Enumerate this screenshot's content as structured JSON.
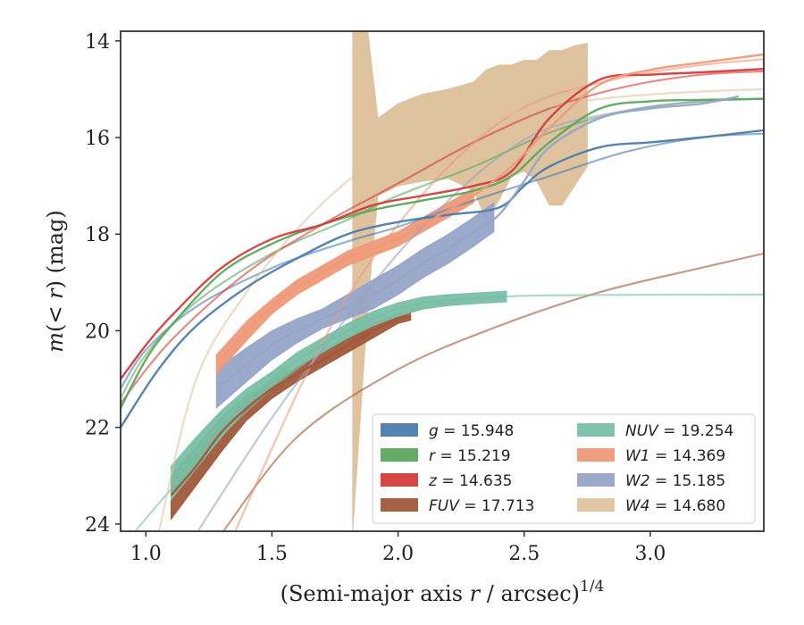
{
  "chart_data": {
    "type": "line",
    "xlabel": "(Semi-major axis r / arcsec)1/4",
    "ylabel": "m(< r) (mag)",
    "xlim": [
      0.9,
      3.45
    ],
    "ylim": [
      24.15,
      13.8
    ],
    "y_inverted": true,
    "grid": false,
    "legend_position": "lower-right",
    "xticks": [
      "1.0",
      "1.5",
      "2.0",
      "2.5",
      "3.0"
    ],
    "yticks": [
      "14",
      "16",
      "18",
      "20",
      "22",
      "24"
    ],
    "series": [
      {
        "key": "g",
        "name": "g",
        "value": "15.948",
        "color": "#4c7dad",
        "model": [
          [
            0.9,
            21.2
          ],
          [
            1.0,
            20.4
          ],
          [
            1.2,
            19.5
          ],
          [
            1.5,
            18.7
          ],
          [
            1.8,
            18.15
          ],
          [
            2.0,
            17.85
          ],
          [
            2.3,
            17.3
          ],
          [
            2.6,
            16.8
          ],
          [
            2.9,
            16.3
          ],
          [
            3.2,
            16.0
          ],
          [
            3.45,
            15.92
          ]
        ],
        "observed": [
          [
            0.9,
            22.0
          ],
          [
            1.05,
            20.8
          ],
          [
            1.2,
            19.9
          ],
          [
            1.4,
            19.1
          ],
          [
            1.6,
            18.5
          ],
          [
            1.8,
            18.0
          ],
          [
            2.0,
            17.75
          ],
          [
            2.2,
            17.6
          ],
          [
            2.4,
            17.45
          ],
          [
            2.5,
            17.0
          ],
          [
            2.6,
            16.6
          ],
          [
            2.8,
            16.2
          ],
          [
            3.0,
            16.1
          ],
          [
            3.2,
            16.0
          ],
          [
            3.45,
            15.85
          ]
        ],
        "band": []
      },
      {
        "key": "r",
        "name": "r",
        "value": "15.219",
        "color": "#5ea85e",
        "model": [
          [
            0.9,
            21.4
          ],
          [
            1.0,
            20.5
          ],
          [
            1.2,
            19.4
          ],
          [
            1.5,
            18.4
          ],
          [
            1.8,
            17.7
          ],
          [
            2.0,
            17.2
          ],
          [
            2.3,
            16.6
          ],
          [
            2.6,
            15.9
          ],
          [
            2.9,
            15.45
          ],
          [
            3.2,
            15.25
          ],
          [
            3.45,
            15.2
          ]
        ],
        "observed": [
          [
            0.9,
            21.6
          ],
          [
            1.0,
            20.6
          ],
          [
            1.1,
            19.9
          ],
          [
            1.3,
            18.8
          ],
          [
            1.5,
            18.2
          ],
          [
            1.7,
            17.8
          ],
          [
            1.9,
            17.5
          ],
          [
            2.1,
            17.3
          ],
          [
            2.3,
            17.1
          ],
          [
            2.45,
            16.8
          ],
          [
            2.6,
            16.1
          ],
          [
            2.8,
            15.4
          ],
          [
            3.0,
            15.25
          ],
          [
            3.2,
            15.22
          ],
          [
            3.45,
            15.2
          ]
        ],
        "band": []
      },
      {
        "key": "z",
        "name": "z",
        "value": "14.635",
        "color": "#d43c3c",
        "model": [
          [
            0.9,
            21.5
          ],
          [
            1.1,
            20.2
          ],
          [
            1.4,
            18.8
          ],
          [
            1.7,
            17.8
          ],
          [
            2.0,
            16.95
          ],
          [
            2.3,
            16.1
          ],
          [
            2.6,
            15.4
          ],
          [
            2.9,
            14.95
          ],
          [
            3.2,
            14.7
          ],
          [
            3.45,
            14.63
          ]
        ],
        "observed": [
          [
            0.9,
            21.0
          ],
          [
            1.0,
            20.3
          ],
          [
            1.1,
            19.7
          ],
          [
            1.3,
            18.7
          ],
          [
            1.5,
            18.1
          ],
          [
            1.7,
            17.8
          ],
          [
            1.9,
            17.4
          ],
          [
            2.1,
            17.2
          ],
          [
            2.3,
            17.0
          ],
          [
            2.45,
            16.7
          ],
          [
            2.6,
            15.6
          ],
          [
            2.8,
            14.8
          ],
          [
            3.0,
            14.7
          ],
          [
            3.2,
            14.65
          ],
          [
            3.45,
            14.58
          ]
        ],
        "band": []
      },
      {
        "key": "FUV",
        "name": "FUV",
        "value": "17.713",
        "color": "#a0583a",
        "model": [
          [
            1.3,
            24.2
          ],
          [
            1.6,
            22.2
          ],
          [
            2.0,
            20.8
          ],
          [
            2.4,
            19.9
          ],
          [
            2.8,
            19.2
          ],
          [
            3.2,
            18.7
          ],
          [
            3.45,
            18.4
          ]
        ],
        "observed": [
          [
            1.1,
            23.4
          ],
          [
            1.2,
            22.8
          ],
          [
            1.3,
            22.1
          ],
          [
            1.4,
            21.6
          ],
          [
            1.5,
            21.2
          ],
          [
            1.6,
            20.9
          ],
          [
            1.7,
            20.6
          ],
          [
            1.8,
            20.3
          ],
          [
            1.9,
            20.0
          ],
          [
            2.0,
            19.75
          ],
          [
            2.05,
            19.7
          ]
        ],
        "band": [
          [
            1.1,
            23.9,
            23.0
          ],
          [
            1.2,
            23.2,
            22.4
          ],
          [
            1.3,
            22.5,
            21.8
          ],
          [
            1.4,
            21.85,
            21.35
          ],
          [
            1.5,
            21.4,
            21.0
          ],
          [
            1.6,
            21.05,
            20.75
          ],
          [
            1.7,
            20.75,
            20.45
          ],
          [
            1.8,
            20.45,
            20.15
          ],
          [
            1.9,
            20.15,
            19.85
          ],
          [
            2.0,
            19.85,
            19.65
          ],
          [
            2.05,
            19.78,
            19.62
          ]
        ]
      },
      {
        "key": "NUV",
        "name": "NUV",
        "value": "19.254",
        "color": "#79bfa5",
        "model": [
          [
            0.95,
            24.2
          ],
          [
            1.2,
            22.7
          ],
          [
            1.5,
            21.2
          ],
          [
            1.8,
            20.1
          ],
          [
            2.1,
            19.5
          ],
          [
            2.4,
            19.3
          ],
          [
            2.8,
            19.26
          ],
          [
            3.45,
            19.25
          ]
        ],
        "observed": [
          [
            1.1,
            23.1
          ],
          [
            1.2,
            22.5
          ],
          [
            1.3,
            21.9
          ],
          [
            1.4,
            21.4
          ],
          [
            1.5,
            21.0
          ],
          [
            1.6,
            20.6
          ],
          [
            1.7,
            20.3
          ],
          [
            1.8,
            20.0
          ],
          [
            1.9,
            19.75
          ],
          [
            2.0,
            19.55
          ],
          [
            2.1,
            19.42
          ],
          [
            2.2,
            19.36
          ],
          [
            2.3,
            19.33
          ],
          [
            2.43,
            19.28
          ]
        ],
        "band": [
          [
            1.1,
            23.5,
            22.8
          ],
          [
            1.2,
            22.85,
            22.2
          ],
          [
            1.3,
            22.2,
            21.65
          ],
          [
            1.4,
            21.6,
            21.2
          ],
          [
            1.5,
            21.15,
            20.85
          ],
          [
            1.6,
            20.75,
            20.45
          ],
          [
            1.7,
            20.45,
            20.15
          ],
          [
            1.8,
            20.15,
            19.85
          ],
          [
            1.9,
            19.9,
            19.6
          ],
          [
            2.0,
            19.7,
            19.42
          ],
          [
            2.1,
            19.55,
            19.3
          ],
          [
            2.2,
            19.48,
            19.25
          ],
          [
            2.3,
            19.44,
            19.22
          ],
          [
            2.43,
            19.4,
            19.18
          ]
        ]
      },
      {
        "key": "W1",
        "name": "W1",
        "value": "14.369",
        "color": "#ee9a78",
        "model": [
          [
            1.35,
            24.2
          ],
          [
            1.6,
            21.3
          ],
          [
            1.8,
            19.3
          ],
          [
            2.0,
            17.8
          ],
          [
            2.2,
            16.6
          ],
          [
            2.4,
            15.7
          ],
          [
            2.6,
            15.15
          ],
          [
            2.9,
            14.75
          ],
          [
            3.2,
            14.5
          ],
          [
            3.45,
            14.38
          ]
        ],
        "observed": [
          [
            1.28,
            20.7
          ],
          [
            1.4,
            20.0
          ],
          [
            1.5,
            19.5
          ],
          [
            1.6,
            19.1
          ],
          [
            1.7,
            18.8
          ],
          [
            1.8,
            18.5
          ],
          [
            1.9,
            18.3
          ],
          [
            2.0,
            18.1
          ],
          [
            2.1,
            17.8
          ],
          [
            2.2,
            17.5
          ],
          [
            2.3,
            17.2
          ],
          [
            2.45,
            16.6
          ],
          [
            2.6,
            15.8
          ],
          [
            2.8,
            14.9
          ],
          [
            3.0,
            14.6
          ],
          [
            3.2,
            14.45
          ],
          [
            3.45,
            14.28
          ]
        ],
        "band": [
          [
            1.28,
            20.9,
            20.5
          ],
          [
            1.4,
            20.2,
            19.8
          ],
          [
            1.5,
            19.65,
            19.35
          ],
          [
            1.6,
            19.25,
            18.95
          ],
          [
            1.7,
            18.95,
            18.65
          ],
          [
            1.8,
            18.65,
            18.35
          ],
          [
            1.9,
            18.45,
            18.15
          ],
          [
            2.0,
            18.25,
            17.95
          ],
          [
            2.1,
            17.95,
            17.65
          ],
          [
            2.2,
            17.65,
            17.35
          ],
          [
            2.3,
            17.35,
            17.05
          ]
        ]
      },
      {
        "key": "W2",
        "name": "W2",
        "value": "15.185",
        "color": "#96a4c8",
        "model": [
          [
            1.2,
            24.2
          ],
          [
            1.5,
            21.8
          ],
          [
            1.8,
            19.7
          ],
          [
            2.0,
            18.4
          ],
          [
            2.2,
            17.3
          ],
          [
            2.4,
            16.4
          ],
          [
            2.6,
            15.8
          ],
          [
            2.9,
            15.45
          ],
          [
            3.2,
            15.25
          ],
          [
            3.45,
            15.2
          ]
        ],
        "observed": [
          [
            1.28,
            21.2
          ],
          [
            1.4,
            20.7
          ],
          [
            1.5,
            20.3
          ],
          [
            1.6,
            20.0
          ],
          [
            1.7,
            19.75
          ],
          [
            1.8,
            19.5
          ],
          [
            1.9,
            19.25
          ],
          [
            2.0,
            18.95
          ],
          [
            2.1,
            18.6
          ],
          [
            2.2,
            18.3
          ],
          [
            2.3,
            17.95
          ],
          [
            2.4,
            17.6
          ],
          [
            2.5,
            16.9
          ],
          [
            2.6,
            16.2
          ],
          [
            2.8,
            15.6
          ],
          [
            3.0,
            15.4
          ],
          [
            3.2,
            15.3
          ],
          [
            3.35,
            15.15
          ]
        ],
        "band": [
          [
            1.28,
            21.6,
            20.8
          ],
          [
            1.4,
            21.05,
            20.35
          ],
          [
            1.5,
            20.6,
            20.0
          ],
          [
            1.6,
            20.25,
            19.75
          ],
          [
            1.7,
            19.95,
            19.55
          ],
          [
            1.8,
            19.75,
            19.25
          ],
          [
            1.9,
            19.55,
            18.95
          ],
          [
            2.0,
            19.25,
            18.65
          ],
          [
            2.1,
            18.9,
            18.3
          ],
          [
            2.2,
            18.6,
            18.0
          ],
          [
            2.3,
            18.25,
            17.65
          ],
          [
            2.38,
            17.95,
            17.35
          ]
        ]
      },
      {
        "key": "W4",
        "name": "W4",
        "value": "14.680",
        "color": "#dfc39e",
        "model": [
          [
            1.05,
            24.2
          ],
          [
            1.2,
            21.0
          ],
          [
            1.4,
            19.2
          ],
          [
            1.6,
            17.9
          ],
          [
            1.8,
            16.9
          ],
          [
            2.0,
            16.2
          ],
          [
            2.3,
            15.7
          ],
          [
            2.6,
            15.35
          ],
          [
            2.9,
            15.15
          ],
          [
            3.2,
            15.05
          ],
          [
            3.45,
            15.0
          ]
        ],
        "observed": [],
        "band": [
          [
            1.82,
            24.15,
            13.8
          ],
          [
            1.88,
            19.5,
            13.8
          ],
          [
            1.92,
            17.2,
            15.6
          ],
          [
            2.0,
            17.0,
            15.3
          ],
          [
            2.1,
            16.9,
            15.1
          ],
          [
            2.2,
            16.85,
            15.0
          ],
          [
            2.3,
            17.1,
            14.85
          ],
          [
            2.35,
            17.7,
            14.6
          ],
          [
            2.4,
            17.3,
            14.5
          ],
          [
            2.45,
            16.8,
            14.5
          ],
          [
            2.5,
            16.7,
            14.4
          ],
          [
            2.55,
            16.9,
            14.4
          ],
          [
            2.6,
            17.4,
            14.2
          ],
          [
            2.65,
            17.4,
            14.2
          ],
          [
            2.7,
            17.0,
            14.1
          ],
          [
            2.75,
            16.6,
            14.05
          ]
        ]
      }
    ]
  }
}
